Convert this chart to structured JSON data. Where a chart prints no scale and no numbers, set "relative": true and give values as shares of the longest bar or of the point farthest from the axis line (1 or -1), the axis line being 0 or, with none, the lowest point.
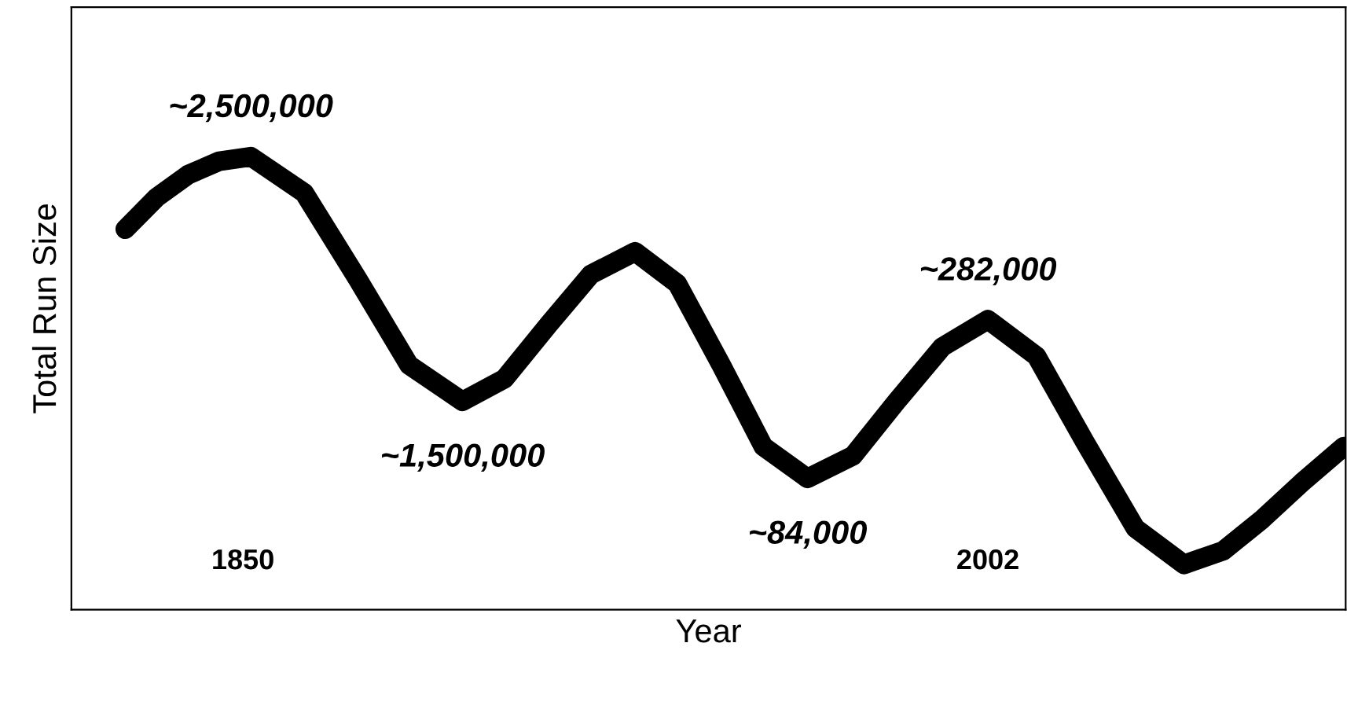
{
  "chart_data": {
    "type": "line",
    "relative": true,
    "xlabel": "Year",
    "ylabel": "Total Run Size",
    "x": [
      1826.0,
      1832.4,
      1838.8,
      1845.2,
      1851.6,
      1862.5,
      1873.4,
      1883.9,
      1894.8,
      1903.4,
      1912.4,
      1921.0,
      1930.0,
      1938.6,
      1947.6,
      1956.2,
      1965.2,
      1974.5,
      1983.4,
      1992.7,
      2002.0,
      2011.9,
      2021.8,
      2032.1,
      2042.0,
      2050.0,
      2058.0,
      2066.0,
      2074.6
    ],
    "series": [
      {
        "color": "#000000",
        "values": [
          0.84,
          0.91,
          0.96,
          0.99,
          1.0,
          0.92,
          0.73,
          0.54,
          0.46,
          0.51,
          0.63,
          0.74,
          0.79,
          0.72,
          0.54,
          0.36,
          0.29,
          0.34,
          0.46,
          0.58,
          0.64,
          0.56,
          0.37,
          0.18,
          0.1,
          0.13,
          0.2,
          0.28,
          0.36
        ]
      }
    ],
    "xlim": [
      1815,
      2075
    ],
    "xticks": [
      1850,
      2002
    ],
    "annotations": [
      {
        "text": "~2,500,000",
        "x": 1851.6,
        "y": 1.0
      },
      {
        "text": "~1,500,000",
        "x": 1894.8,
        "y": 0.46
      },
      {
        "text": "~84,000",
        "x": 1965.2,
        "y": 0.29
      },
      {
        "text": "~282,000",
        "x": 2002.0,
        "y": 0.64
      }
    ],
    "grid": false,
    "line_style": "solid"
  }
}
